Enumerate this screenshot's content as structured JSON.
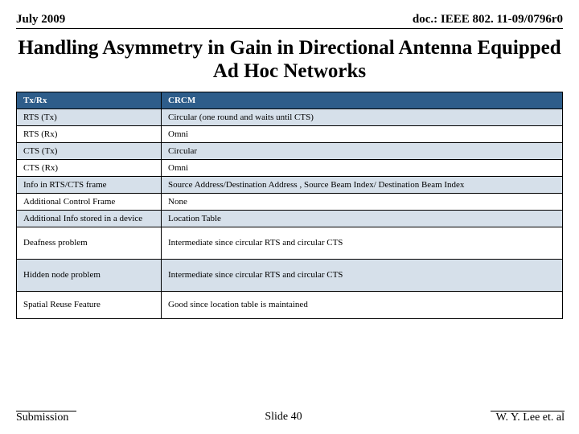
{
  "header": {
    "left": "July 2009",
    "right": "doc.: IEEE 802. 11-09/0796r0"
  },
  "title": "Handling Asymmetry in Gain in Directional Antenna Equipped Ad Hoc Networks",
  "table": {
    "head": {
      "c1": "Tx/Rx",
      "c2": "CRCM"
    },
    "rows": [
      {
        "c1": "RTS (Tx)",
        "c2": "Circular (one round and waits until CTS)",
        "alt": true
      },
      {
        "c1": "RTS (Rx)",
        "c2": "Omni",
        "alt": false
      },
      {
        "c1": "CTS (Tx)",
        "c2": "Circular",
        "alt": true
      },
      {
        "c1": "CTS (Rx)",
        "c2": "Omni",
        "alt": false
      },
      {
        "c1": "Info in RTS/CTS frame",
        "c2": "Source Address/Destination Address , Source Beam Index/ Destination Beam Index",
        "alt": true
      },
      {
        "c1": "Additional Control Frame",
        "c2": "None",
        "alt": false
      },
      {
        "c1": "Additional Info stored in a device",
        "c2": "Location Table",
        "alt": true
      },
      {
        "c1": "Deafness problem",
        "c2": "Intermediate since circular RTS and circular CTS",
        "alt": false,
        "tall": true
      },
      {
        "c1": "Hidden node problem",
        "c2": "Intermediate since circular RTS and circular CTS",
        "alt": true,
        "tall": true
      },
      {
        "c1": "Spatial Reuse Feature",
        "c2": "Good since location table is maintained",
        "alt": false,
        "med": true
      }
    ]
  },
  "footer": {
    "left": "Submission",
    "center": "Slide 40",
    "right": "W. Y. Lee et. al"
  }
}
